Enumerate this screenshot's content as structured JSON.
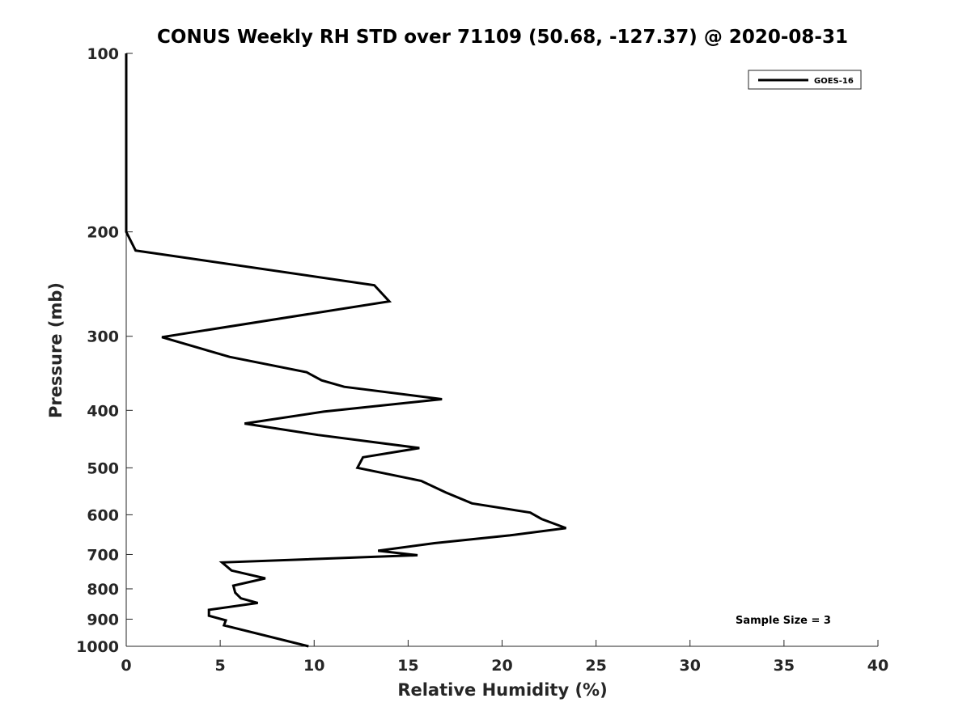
{
  "chart_data": {
    "type": "line",
    "title": "CONUS Weekly RH STD over 71109 (50.68, -127.37) @ 2020-08-31",
    "xlabel": "Relative Humidity (%)",
    "ylabel": "Pressure (mb)",
    "xlim": [
      0,
      40
    ],
    "ylim": [
      100,
      1000
    ],
    "y_scale": "log",
    "y_reversed": true,
    "x_ticks": [
      0,
      5,
      10,
      15,
      20,
      25,
      30,
      35,
      40
    ],
    "y_ticks": [
      100,
      200,
      300,
      400,
      500,
      600,
      700,
      800,
      900,
      1000
    ],
    "grid": false,
    "legend_position": "top-right",
    "annotation": "Sample Size = 3",
    "series": [
      {
        "name": "GOES-16",
        "color": "#000000",
        "points": [
          {
            "x": 0.0,
            "y": 100
          },
          {
            "x": 0.0,
            "y": 150
          },
          {
            "x": 0.0,
            "y": 200
          },
          {
            "x": 0.5,
            "y": 215
          },
          {
            "x": 13.2,
            "y": 246
          },
          {
            "x": 14.0,
            "y": 262
          },
          {
            "x": 1.9,
            "y": 301
          },
          {
            "x": 5.5,
            "y": 325
          },
          {
            "x": 9.6,
            "y": 345
          },
          {
            "x": 10.4,
            "y": 356
          },
          {
            "x": 11.6,
            "y": 365
          },
          {
            "x": 16.8,
            "y": 383
          },
          {
            "x": 10.5,
            "y": 402
          },
          {
            "x": 6.3,
            "y": 421
          },
          {
            "x": 10.2,
            "y": 440
          },
          {
            "x": 15.6,
            "y": 463
          },
          {
            "x": 12.6,
            "y": 480
          },
          {
            "x": 12.3,
            "y": 500
          },
          {
            "x": 15.7,
            "y": 526
          },
          {
            "x": 17.0,
            "y": 550
          },
          {
            "x": 18.4,
            "y": 574
          },
          {
            "x": 21.5,
            "y": 595
          },
          {
            "x": 22.1,
            "y": 610
          },
          {
            "x": 23.4,
            "y": 632
          },
          {
            "x": 20.4,
            "y": 650
          },
          {
            "x": 16.4,
            "y": 670
          },
          {
            "x": 13.4,
            "y": 690
          },
          {
            "x": 15.5,
            "y": 702
          },
          {
            "x": 5.1,
            "y": 722
          },
          {
            "x": 5.6,
            "y": 745
          },
          {
            "x": 7.4,
            "y": 768
          },
          {
            "x": 5.7,
            "y": 790
          },
          {
            "x": 5.8,
            "y": 812
          },
          {
            "x": 6.1,
            "y": 830
          },
          {
            "x": 7.0,
            "y": 845
          },
          {
            "x": 4.4,
            "y": 868
          },
          {
            "x": 4.4,
            "y": 888
          },
          {
            "x": 5.3,
            "y": 904
          },
          {
            "x": 5.2,
            "y": 922
          },
          {
            "x": 9.7,
            "y": 1000
          }
        ]
      }
    ]
  }
}
